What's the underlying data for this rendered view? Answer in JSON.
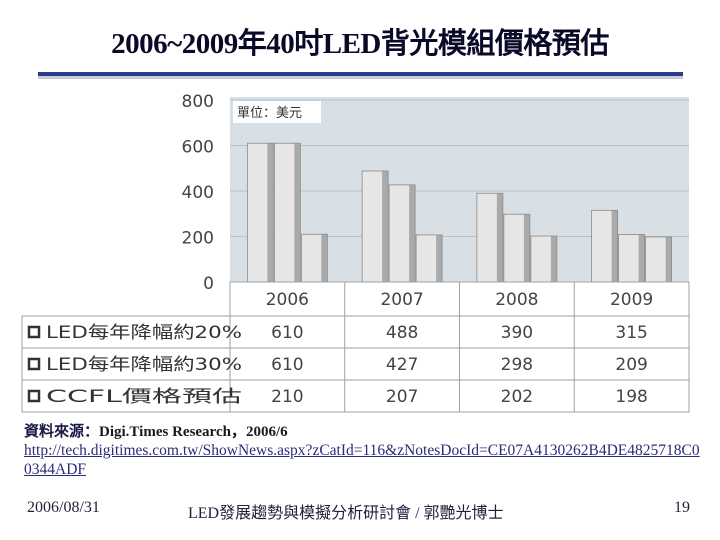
{
  "slide": {
    "title": "2006~2009年40吋LED背光模組價格預估",
    "source_label": "資料來源：",
    "source_ref": "Digi.Times Research，2006/6",
    "source_url": "http://tech.digitimes.com.tw/ShowNews.aspx?zCatId=116&zNotesDocId=CE07A4130262B4DE4825718C00344ADF",
    "footer_date": "2006/08/31",
    "footer_text": "LED發展趨勢與模擬分析研討會 / 郭艷光博士",
    "page_number": "19"
  },
  "colors": {
    "bar_light": "#e6e6e6",
    "bar_dark": "#909090",
    "plot_bg": "#d8e0e6",
    "title_rule": [
      "#2b3a8a",
      "#c9cbd6"
    ]
  },
  "chart_data": {
    "type": "bar",
    "title": "",
    "unit_label": "單位：美元",
    "categories": [
      "2006",
      "2007",
      "2008",
      "2009"
    ],
    "series": [
      {
        "name": "LED每年降幅約20%",
        "values": [
          610,
          488,
          390,
          315
        ]
      },
      {
        "name": "LED每年降幅約30%",
        "values": [
          610,
          427,
          298,
          209
        ]
      },
      {
        "name": "CCFL價格預估",
        "values": [
          210,
          207,
          202,
          198
        ]
      }
    ],
    "y_ticks": [
      "800",
      "600",
      "400",
      "200",
      "0"
    ],
    "ylim": [
      0,
      800
    ],
    "legend_position": "bottom-table",
    "grid": true
  }
}
